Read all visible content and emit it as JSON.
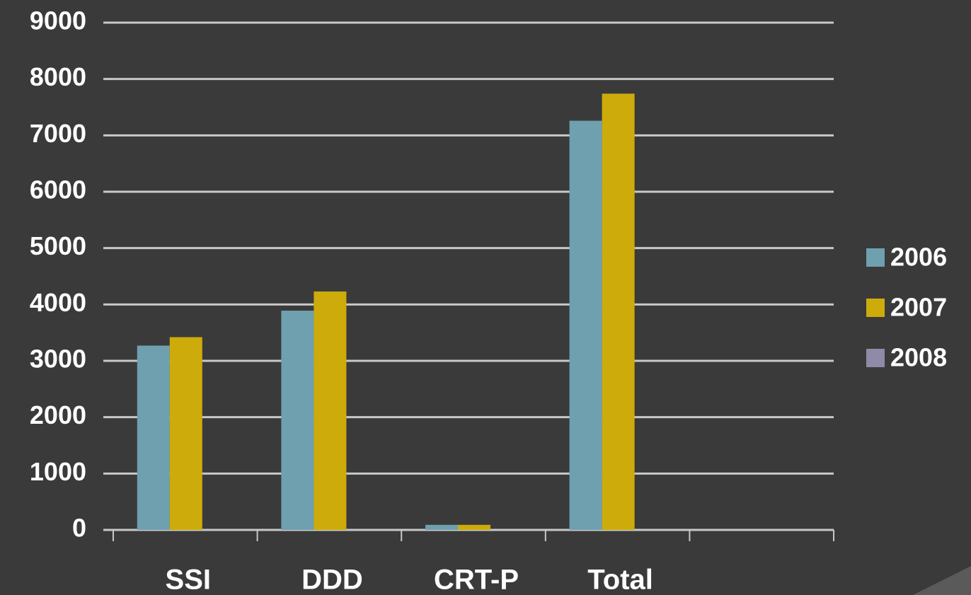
{
  "chart_data": {
    "type": "bar",
    "categories": [
      "SSI",
      "DDD",
      "CRT-P",
      "Total",
      null
    ],
    "series": [
      {
        "name": "2006",
        "color": "#6fa0b0",
        "values": [
          3270,
          3890,
          90,
          7260,
          null
        ]
      },
      {
        "name": "2007",
        "color": "#cdab0b",
        "values": [
          3420,
          4230,
          90,
          7740,
          null
        ]
      },
      {
        "name": "2008",
        "color": "#8f8aa8",
        "values": [
          null,
          null,
          null,
          null,
          null
        ]
      }
    ],
    "ylim": [
      0,
      9000
    ],
    "yticks": [
      0,
      1000,
      2000,
      3000,
      4000,
      5000,
      6000,
      7000,
      8000,
      9000
    ],
    "grid": true,
    "legend": "right"
  }
}
